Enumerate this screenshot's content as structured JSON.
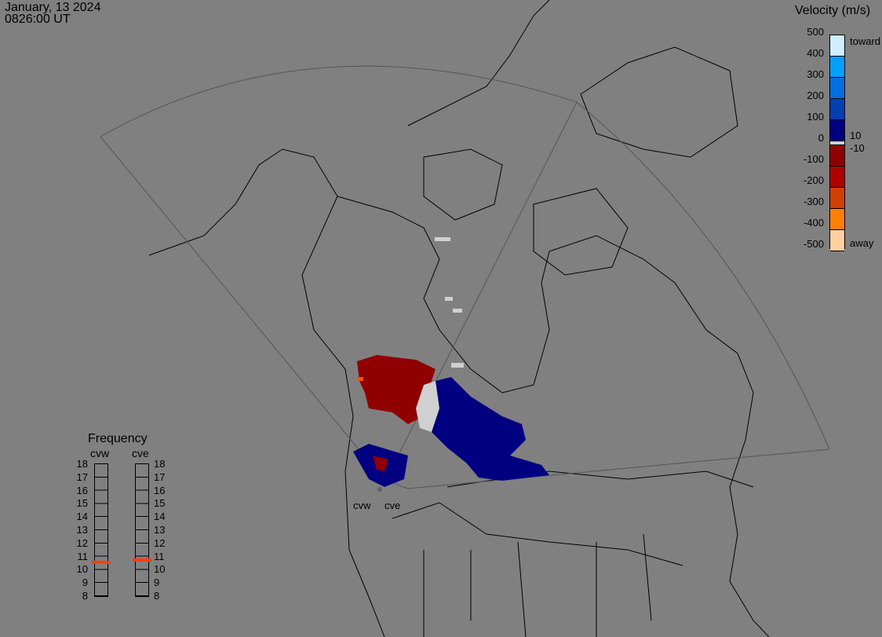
{
  "header": {
    "date": "January, 13 2024",
    "time": "0826:00 UT"
  },
  "colorbar": {
    "title": "Velocity (m/s)",
    "ticks": [
      "500",
      "400",
      "300",
      "200",
      "100",
      "0",
      "-100",
      "-200",
      "-300",
      "-400",
      "-500"
    ],
    "toward_label": "toward",
    "away_label": "away",
    "pos_threshold": "10",
    "neg_threshold": "-10",
    "colors": [
      "#cfeeff",
      "#00a0ff",
      "#0070e0",
      "#0040b0",
      "#000080",
      "#d0d0d0",
      "#900000",
      "#b00000",
      "#d04000",
      "#ff8000",
      "#ffd0a0"
    ]
  },
  "frequency": {
    "title": "Frequency",
    "radars": [
      {
        "name": "cvw",
        "freq_mhz": 10.5
      },
      {
        "name": "cve",
        "freq_mhz": 10.7
      }
    ],
    "ticks": [
      "18",
      "17",
      "16",
      "15",
      "14",
      "13",
      "12",
      "11",
      "10",
      "9",
      "8"
    ],
    "marker_color": "#ff4000"
  },
  "map": {
    "radar_labels": [
      "cvw",
      "cve"
    ]
  }
}
